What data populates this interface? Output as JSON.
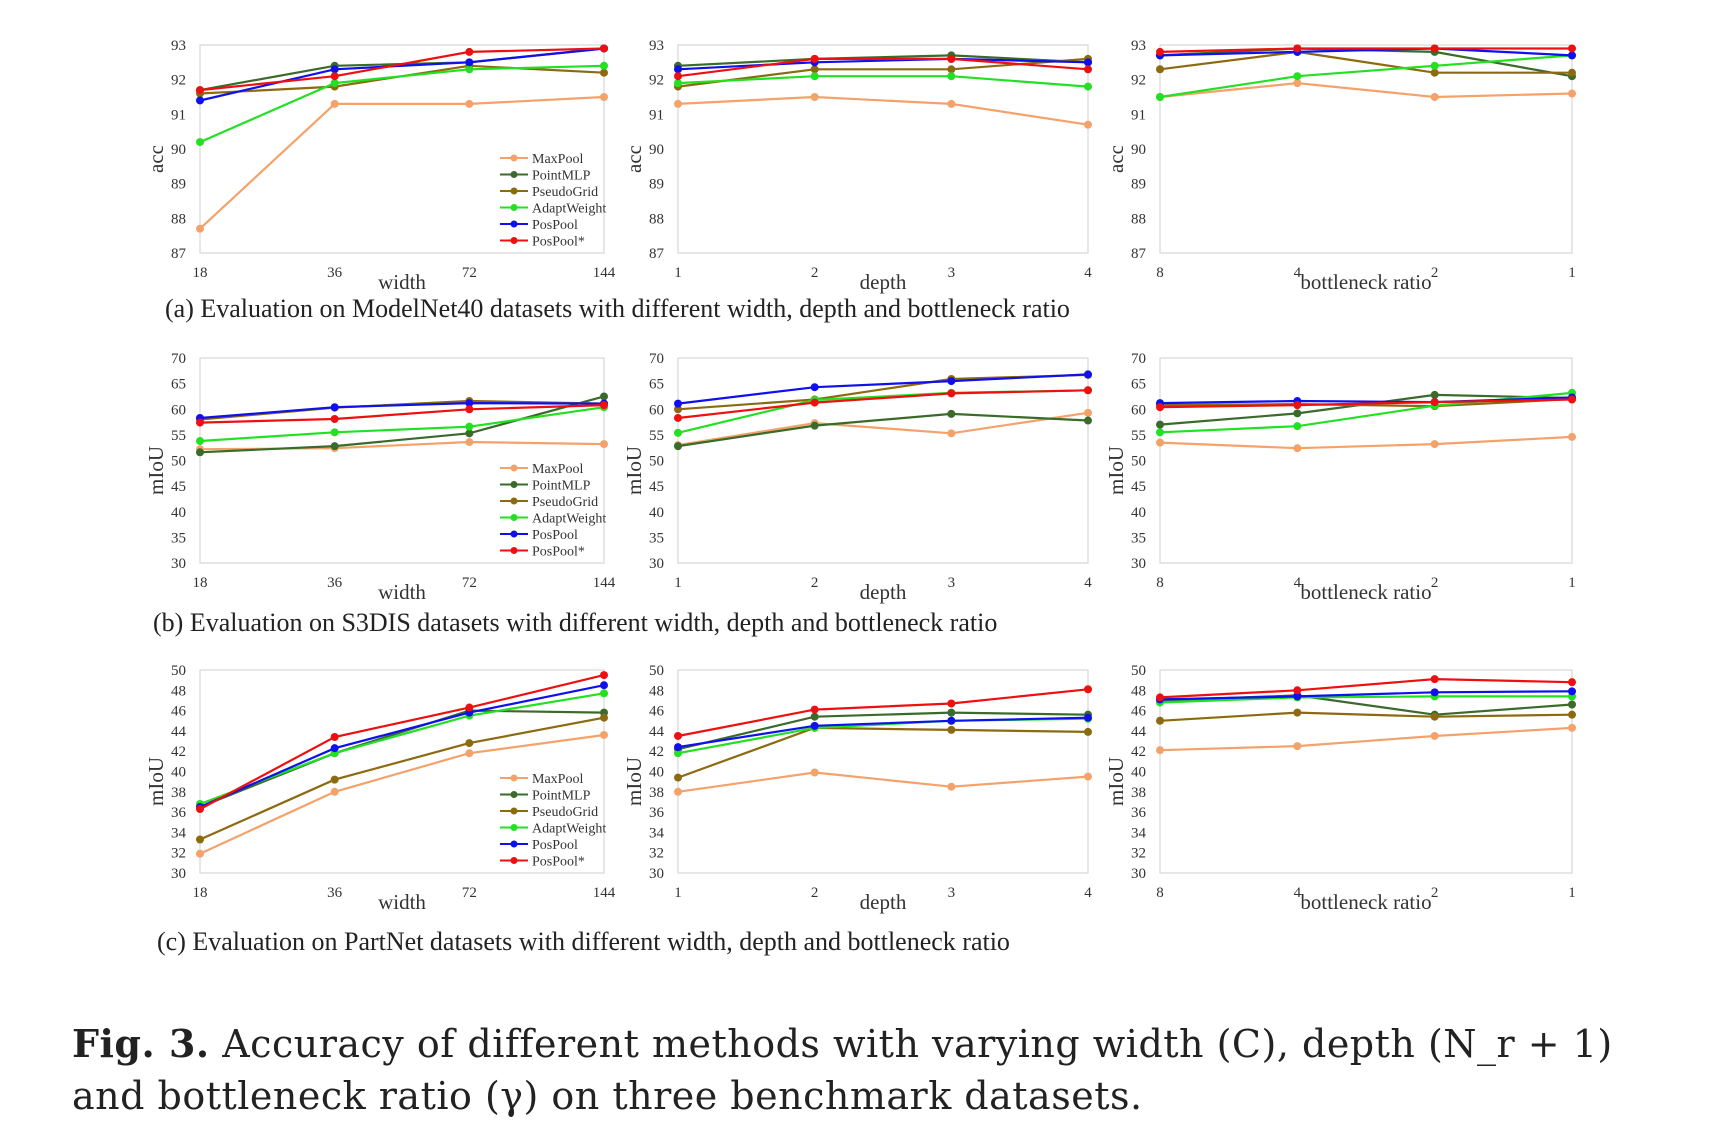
{
  "figure_caption": {
    "label": "Fig. 3.",
    "text": "Accuracy of different methods with varying width (C), depth (N_r + 1) and bottleneck ratio (γ) on three benchmark datasets."
  },
  "row_captions": [
    "(a) Evaluation on ModelNet40 datasets with different width, depth and bottleneck ratio",
    "(b) Evaluation on S3DIS datasets with different width, depth and bottleneck ratio",
    "(c) Evaluation on PartNet datasets with different width, depth and bottleneck ratio"
  ],
  "legend": [
    {
      "name": "MaxPool",
      "color": "#F4A26A"
    },
    {
      "name": "PointMLP",
      "color": "#3A6B2A"
    },
    {
      "name": "PseudoGrid",
      "color": "#8C6A10"
    },
    {
      "name": "AdaptWeight",
      "color": "#22E022"
    },
    {
      "name": "PosPool",
      "color": "#1010EE"
    },
    {
      "name": "PosPool*",
      "color": "#EE1010"
    }
  ],
  "chart_data": [
    {
      "type": "line",
      "dataset": "ModelNet40",
      "xlabel": "width",
      "ylabel": "acc",
      "categories": [
        "18",
        "36",
        "72",
        "144"
      ],
      "ylim": [
        87,
        93
      ],
      "yticks": [
        87,
        88,
        89,
        90,
        91,
        92,
        93
      ],
      "legend": true,
      "series": [
        {
          "name": "MaxPool",
          "values": [
            87.7,
            91.3,
            91.3,
            91.5
          ]
        },
        {
          "name": "PointMLP",
          "values": [
            91.7,
            92.4,
            92.5,
            92.9
          ]
        },
        {
          "name": "PseudoGrid",
          "values": [
            91.6,
            91.8,
            92.4,
            92.2
          ]
        },
        {
          "name": "AdaptWeight",
          "values": [
            90.2,
            91.9,
            92.3,
            92.4
          ]
        },
        {
          "name": "PosPool",
          "values": [
            91.4,
            92.3,
            92.5,
            92.9
          ]
        },
        {
          "name": "PosPool*",
          "values": [
            91.7,
            92.1,
            92.8,
            92.9
          ]
        }
      ]
    },
    {
      "type": "line",
      "dataset": "ModelNet40",
      "xlabel": "depth",
      "ylabel": "acc",
      "categories": [
        "1",
        "2",
        "3",
        "4"
      ],
      "ylim": [
        87,
        93
      ],
      "yticks": [
        87,
        88,
        89,
        90,
        91,
        92,
        93
      ],
      "legend": false,
      "series": [
        {
          "name": "MaxPool",
          "values": [
            91.3,
            91.5,
            91.3,
            90.7
          ]
        },
        {
          "name": "PointMLP",
          "values": [
            92.4,
            92.6,
            92.7,
            92.5
          ]
        },
        {
          "name": "PseudoGrid",
          "values": [
            91.8,
            92.3,
            92.3,
            92.6
          ]
        },
        {
          "name": "AdaptWeight",
          "values": [
            91.9,
            92.1,
            92.1,
            91.8
          ]
        },
        {
          "name": "PosPool",
          "values": [
            92.3,
            92.5,
            92.6,
            92.5
          ]
        },
        {
          "name": "PosPool*",
          "values": [
            92.1,
            92.6,
            92.6,
            92.3
          ]
        }
      ]
    },
    {
      "type": "line",
      "dataset": "ModelNet40",
      "xlabel": "bottleneck ratio",
      "ylabel": "acc",
      "categories": [
        "8",
        "4",
        "2",
        "1"
      ],
      "ylim": [
        87,
        93
      ],
      "yticks": [
        87,
        88,
        89,
        90,
        91,
        92,
        93
      ],
      "legend": false,
      "series": [
        {
          "name": "MaxPool",
          "values": [
            91.5,
            91.9,
            91.5,
            91.6
          ]
        },
        {
          "name": "PointMLP",
          "values": [
            92.7,
            92.9,
            92.8,
            92.1
          ]
        },
        {
          "name": "PseudoGrid",
          "values": [
            92.3,
            92.8,
            92.2,
            92.2
          ]
        },
        {
          "name": "AdaptWeight",
          "values": [
            91.5,
            92.1,
            92.4,
            92.7
          ]
        },
        {
          "name": "PosPool",
          "values": [
            92.7,
            92.8,
            92.9,
            92.7
          ]
        },
        {
          "name": "PosPool*",
          "values": [
            92.8,
            92.9,
            92.9,
            92.9
          ]
        }
      ]
    },
    {
      "type": "line",
      "dataset": "S3DIS",
      "xlabel": "width",
      "ylabel": "mIoU",
      "categories": [
        "18",
        "36",
        "72",
        "144"
      ],
      "ylim": [
        30,
        70
      ],
      "yticks": [
        30,
        35,
        40,
        45,
        50,
        55,
        60,
        65,
        70
      ],
      "legend": true,
      "series": [
        {
          "name": "MaxPool",
          "values": [
            52.2,
            52.4,
            53.6,
            53.2
          ]
        },
        {
          "name": "PointMLP",
          "values": [
            51.6,
            52.8,
            55.3,
            62.5
          ]
        },
        {
          "name": "PseudoGrid",
          "values": [
            58.0,
            60.3,
            61.6,
            61.1
          ]
        },
        {
          "name": "AdaptWeight",
          "values": [
            53.8,
            55.5,
            56.6,
            60.4
          ]
        },
        {
          "name": "PosPool",
          "values": [
            58.3,
            60.4,
            61.2,
            61.1
          ]
        },
        {
          "name": "PosPool*",
          "values": [
            57.4,
            58.1,
            60.0,
            60.8
          ]
        }
      ]
    },
    {
      "type": "line",
      "dataset": "S3DIS",
      "xlabel": "depth",
      "ylabel": "mIoU",
      "categories": [
        "1",
        "2",
        "3",
        "4"
      ],
      "ylim": [
        30,
        70
      ],
      "yticks": [
        30,
        35,
        40,
        45,
        50,
        55,
        60,
        65,
        70
      ],
      "legend": false,
      "series": [
        {
          "name": "MaxPool",
          "values": [
            53.0,
            57.3,
            55.3,
            59.3
          ]
        },
        {
          "name": "PointMLP",
          "values": [
            52.8,
            56.8,
            59.1,
            57.8
          ]
        },
        {
          "name": "PseudoGrid",
          "values": [
            60.0,
            61.9,
            65.9,
            66.7
          ]
        },
        {
          "name": "AdaptWeight",
          "values": [
            55.4,
            61.8,
            63.2,
            63.7
          ]
        },
        {
          "name": "PosPool",
          "values": [
            61.1,
            64.3,
            65.5,
            66.8
          ]
        },
        {
          "name": "PosPool*",
          "values": [
            58.3,
            61.3,
            63.1,
            63.7
          ]
        }
      ]
    },
    {
      "type": "line",
      "dataset": "S3DIS",
      "xlabel": "bottleneck ratio",
      "ylabel": "mIoU",
      "categories": [
        "8",
        "4",
        "2",
        "1"
      ],
      "ylim": [
        30,
        70
      ],
      "yticks": [
        30,
        35,
        40,
        45,
        50,
        55,
        60,
        65,
        70
      ],
      "legend": false,
      "series": [
        {
          "name": "MaxPool",
          "values": [
            53.5,
            52.4,
            53.2,
            54.6
          ]
        },
        {
          "name": "PointMLP",
          "values": [
            57.0,
            59.2,
            62.8,
            62.2
          ]
        },
        {
          "name": "PseudoGrid",
          "values": [
            60.8,
            61.0,
            60.6,
            62.0
          ]
        },
        {
          "name": "AdaptWeight",
          "values": [
            55.5,
            56.7,
            60.7,
            63.2
          ]
        },
        {
          "name": "PosPool",
          "values": [
            61.2,
            61.6,
            61.4,
            62.3
          ]
        },
        {
          "name": "PosPool*",
          "values": [
            60.4,
            60.8,
            61.4,
            61.9
          ]
        }
      ]
    },
    {
      "type": "line",
      "dataset": "PartNet",
      "xlabel": "width",
      "ylabel": "mIoU",
      "categories": [
        "18",
        "36",
        "72",
        "144"
      ],
      "ylim": [
        30,
        50
      ],
      "yticks": [
        30,
        32,
        34,
        36,
        38,
        40,
        42,
        44,
        46,
        48,
        50
      ],
      "legend": true,
      "series": [
        {
          "name": "MaxPool",
          "values": [
            31.9,
            38.0,
            41.8,
            43.6
          ]
        },
        {
          "name": "PointMLP",
          "values": [
            36.5,
            41.8,
            46.0,
            45.8
          ]
        },
        {
          "name": "PseudoGrid",
          "values": [
            33.3,
            39.2,
            42.8,
            45.3
          ]
        },
        {
          "name": "AdaptWeight",
          "values": [
            36.8,
            41.8,
            45.5,
            47.7
          ]
        },
        {
          "name": "PosPool",
          "values": [
            36.5,
            42.3,
            45.8,
            48.5
          ]
        },
        {
          "name": "PosPool*",
          "values": [
            36.3,
            43.4,
            46.3,
            49.5
          ]
        }
      ]
    },
    {
      "type": "line",
      "dataset": "PartNet",
      "xlabel": "depth",
      "ylabel": "mIoU",
      "categories": [
        "1",
        "2",
        "3",
        "4"
      ],
      "ylim": [
        30,
        50
      ],
      "yticks": [
        30,
        32,
        34,
        36,
        38,
        40,
        42,
        44,
        46,
        48,
        50
      ],
      "legend": false,
      "series": [
        {
          "name": "MaxPool",
          "values": [
            38.0,
            39.9,
            38.5,
            39.5
          ]
        },
        {
          "name": "PointMLP",
          "values": [
            42.2,
            45.4,
            45.8,
            45.6
          ]
        },
        {
          "name": "PseudoGrid",
          "values": [
            39.4,
            44.3,
            44.1,
            43.9
          ]
        },
        {
          "name": "AdaptWeight",
          "values": [
            41.8,
            44.3,
            45.0,
            45.2
          ]
        },
        {
          "name": "PosPool",
          "values": [
            42.4,
            44.5,
            45.0,
            45.3
          ]
        },
        {
          "name": "PosPool*",
          "values": [
            43.5,
            46.1,
            46.7,
            48.1
          ]
        }
      ]
    },
    {
      "type": "line",
      "dataset": "PartNet",
      "xlabel": "bottleneck ratio",
      "ylabel": "mIoU",
      "categories": [
        "8",
        "4",
        "2",
        "1"
      ],
      "ylim": [
        30,
        50
      ],
      "yticks": [
        30,
        32,
        34,
        36,
        38,
        40,
        42,
        44,
        46,
        48,
        50
      ],
      "legend": false,
      "series": [
        {
          "name": "MaxPool",
          "values": [
            42.1,
            42.5,
            43.5,
            44.3
          ]
        },
        {
          "name": "PointMLP",
          "values": [
            47.0,
            47.5,
            45.6,
            46.6
          ]
        },
        {
          "name": "PseudoGrid",
          "values": [
            45.0,
            45.8,
            45.4,
            45.6
          ]
        },
        {
          "name": "AdaptWeight",
          "values": [
            46.8,
            47.3,
            47.4,
            47.4
          ]
        },
        {
          "name": "PosPool",
          "values": [
            47.1,
            47.4,
            47.8,
            47.9
          ]
        },
        {
          "name": "PosPool*",
          "values": [
            47.3,
            48.0,
            49.1,
            48.8
          ]
        }
      ]
    }
  ]
}
